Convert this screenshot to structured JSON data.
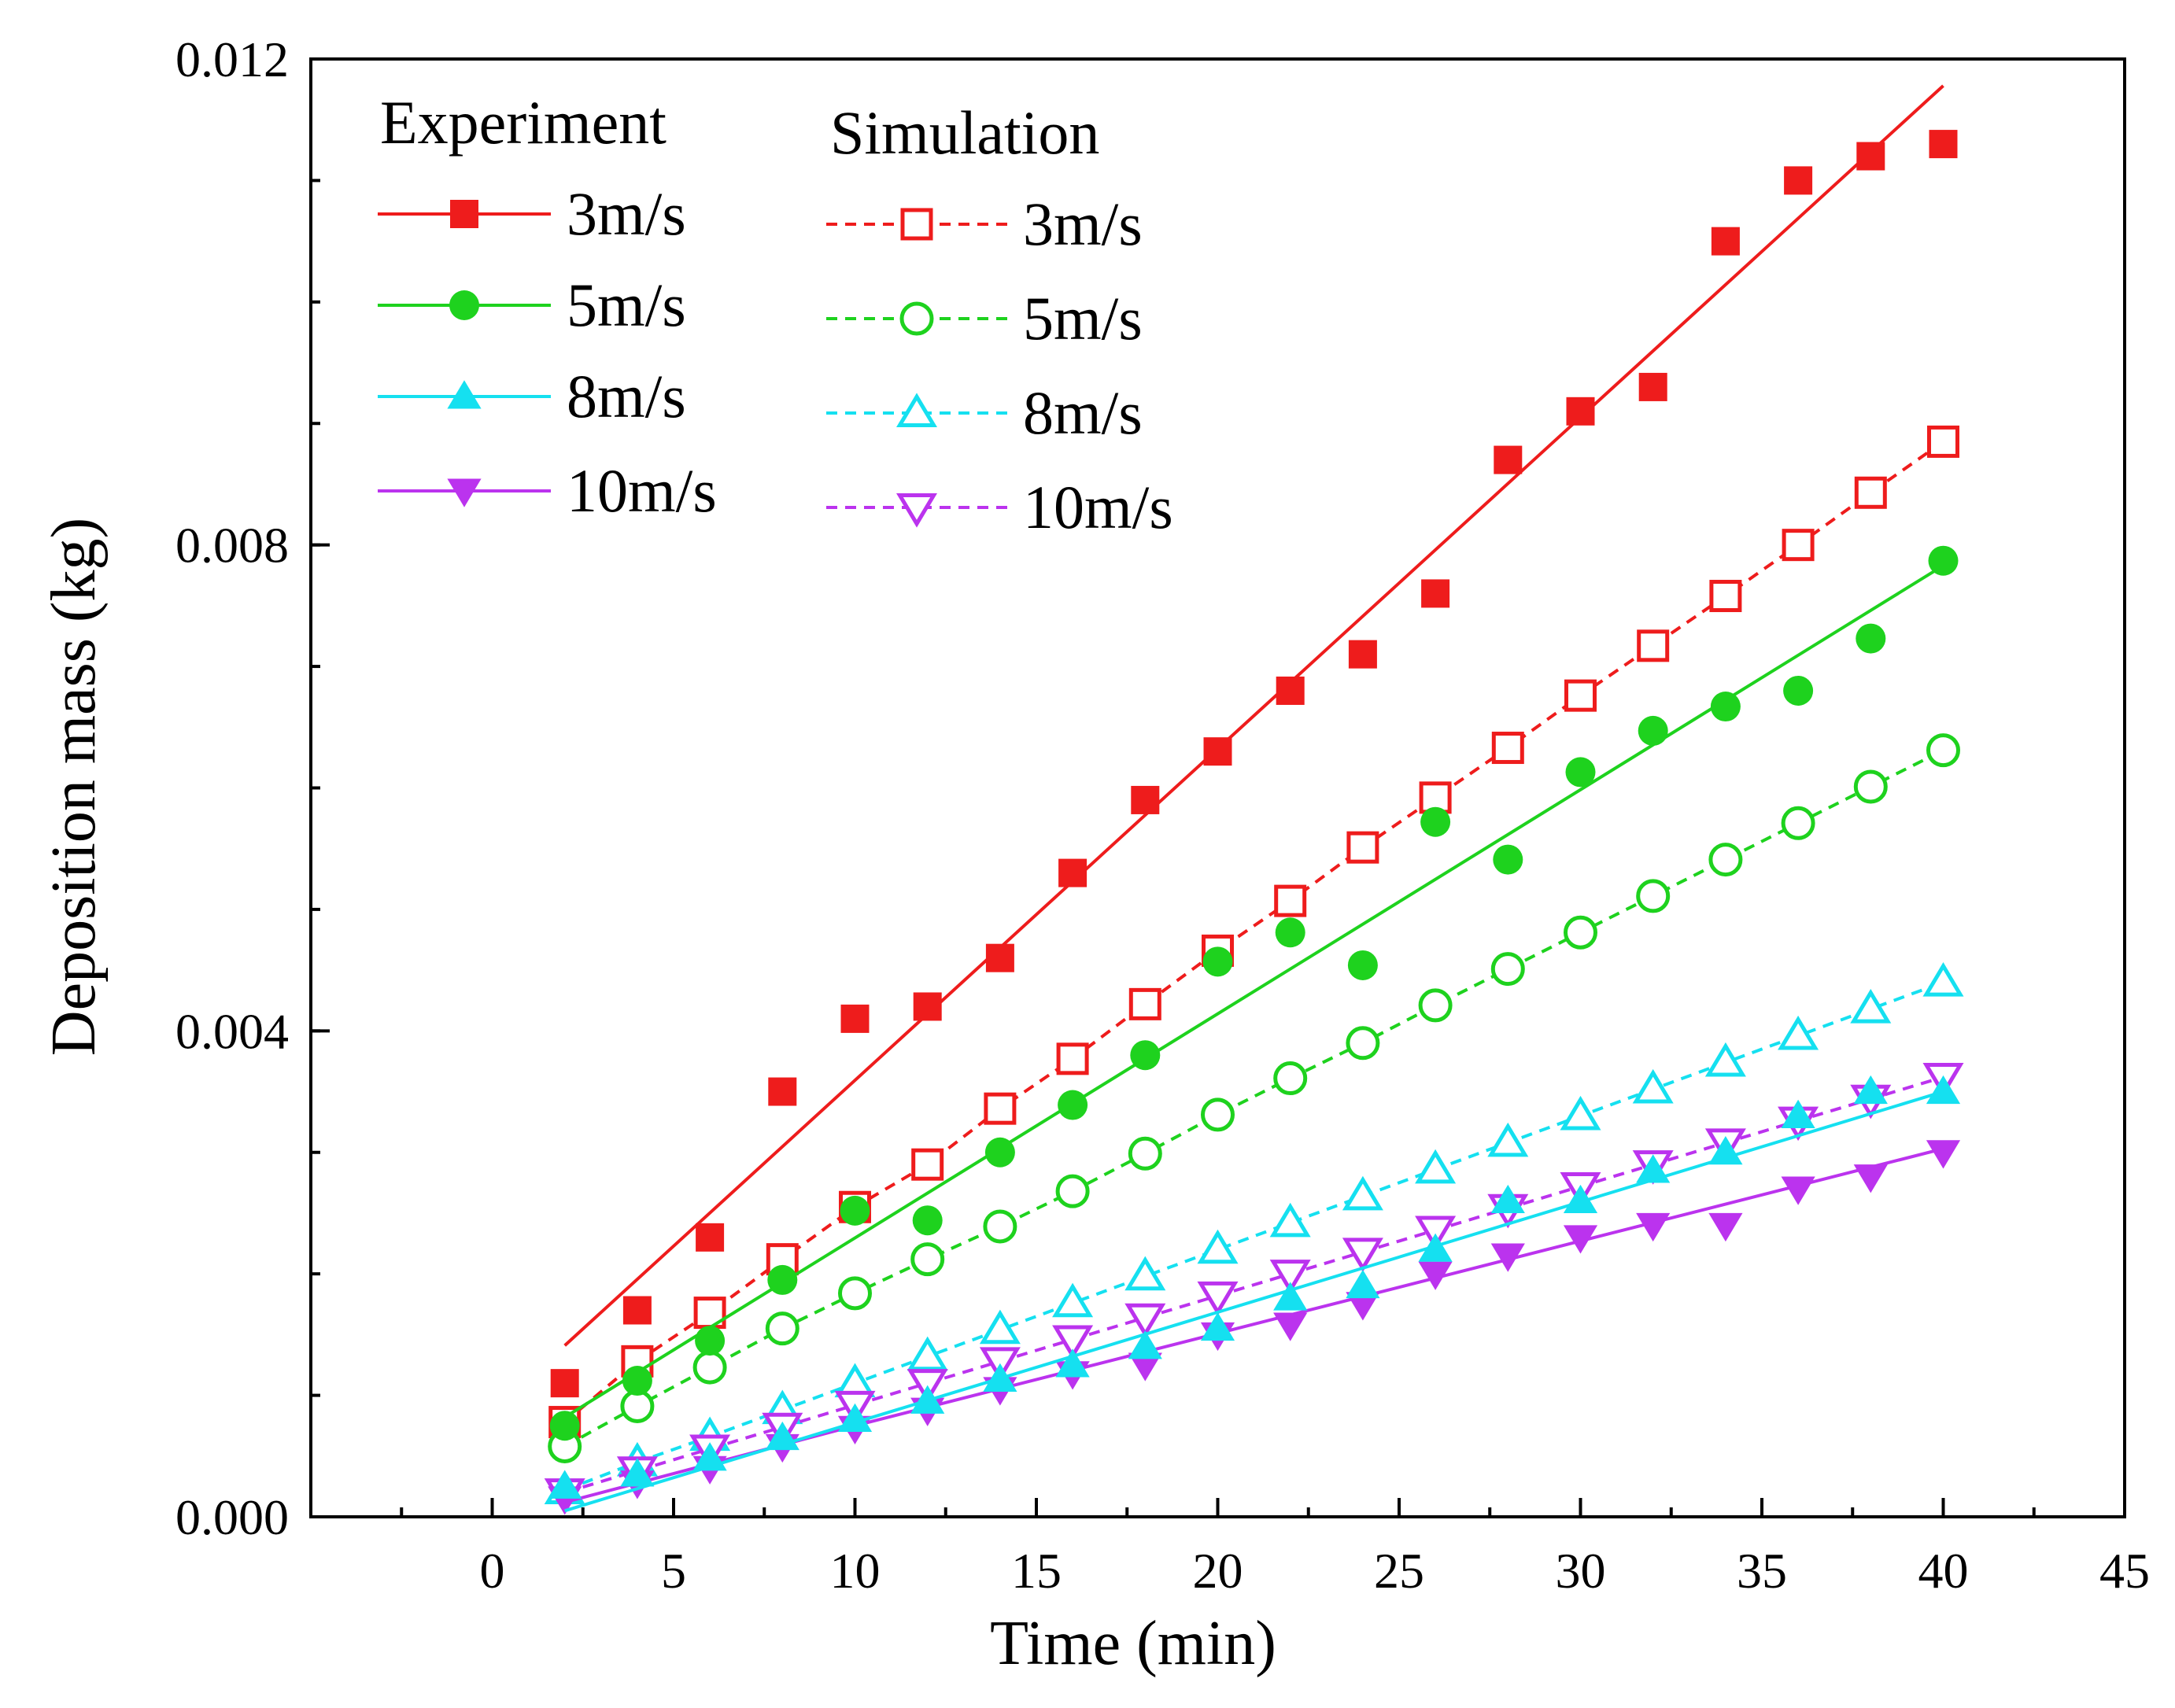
{
  "chart_data": {
    "type": "line",
    "title": "",
    "xlabel": "Time (min)",
    "ylabel": "Deposition mass (kg)",
    "xlim": [
      -5,
      45
    ],
    "ylim": [
      0,
      0.012
    ],
    "x_ticks": [
      0,
      5,
      10,
      15,
      20,
      25,
      30,
      35,
      40,
      45
    ],
    "x_tick_labels": [
      "0",
      "5",
      "10",
      "15",
      "20",
      "25",
      "30",
      "35",
      "40",
      "45"
    ],
    "y_ticks": [
      0,
      0.004,
      0.008,
      0.012
    ],
    "y_tick_labels": [
      "0.000",
      "0.004",
      "0.008",
      "0.012"
    ],
    "legend_titles": {
      "experiment": "Experiment",
      "simulation": "Simulation"
    },
    "x": [
      2,
      4,
      6,
      8,
      10,
      12,
      14,
      16,
      18,
      20,
      22,
      24,
      26,
      28,
      30,
      32,
      34,
      36,
      38,
      40
    ],
    "series": [
      {
        "name": "3m/s",
        "group": "experiment",
        "color": "#ee1c1c",
        "marker": "square",
        "filled": true,
        "values": [
          0.0011,
          0.0017,
          0.0023,
          0.0035,
          0.0041,
          0.0042,
          0.0046,
          0.0053,
          0.0059,
          0.0063,
          0.0068,
          0.0071,
          0.0076,
          0.0087,
          0.0091,
          0.0093,
          0.0105,
          0.011,
          0.0112,
          0.0113
        ],
        "fit": [
          [
            2,
            0.00141
          ],
          [
            40,
            0.01178
          ]
        ]
      },
      {
        "name": "5m/s",
        "group": "experiment",
        "color": "#1ed21e",
        "marker": "circle",
        "filled": true,
        "values": [
          0.00075,
          0.00112,
          0.00145,
          0.00195,
          0.00252,
          0.00244,
          0.003,
          0.00339,
          0.0038,
          0.00457,
          0.00481,
          0.00454,
          0.00572,
          0.00541,
          0.00613,
          0.00647,
          0.00667,
          0.0068,
          0.00723,
          0.00787
        ],
        "fit": [
          [
            2,
            0.00082
          ],
          [
            40,
            0.00783
          ]
        ]
      },
      {
        "name": "8m/s",
        "group": "experiment",
        "color": "#15e0f0",
        "marker": "triangle-up",
        "filled": true,
        "values": [
          0.00025,
          0.00035,
          0.00048,
          0.00065,
          0.0008,
          0.00095,
          0.00113,
          0.00125,
          0.0014,
          0.00155,
          0.0018,
          0.0019,
          0.0022,
          0.0026,
          0.0026,
          0.00285,
          0.003,
          0.0033,
          0.0035,
          0.0035
        ],
        "fit": [
          [
            2,
            5e-05
          ],
          [
            40,
            0.0035
          ]
        ]
      },
      {
        "name": "10m/s",
        "group": "experiment",
        "color": "#bb33ee",
        "marker": "triangle-down",
        "filled": true,
        "values": [
          0.00015,
          0.00028,
          0.0004,
          0.00058,
          0.00073,
          0.00088,
          0.00105,
          0.00118,
          0.00125,
          0.0015,
          0.00158,
          0.00175,
          0.002,
          0.00215,
          0.0023,
          0.0024,
          0.0024,
          0.0027,
          0.0028,
          0.003
        ],
        "fit": [
          [
            2,
            0.00012
          ],
          [
            10,
            0.00075
          ],
          [
            40,
            0.00303
          ]
        ]
      },
      {
        "name": "3m/s",
        "group": "simulation",
        "color": "#ee1c1c",
        "marker": "square",
        "filled": false,
        "values": [
          0.00078,
          0.00128,
          0.00168,
          0.00212,
          0.00255,
          0.0029,
          0.00336,
          0.00377,
          0.00422,
          0.00466,
          0.00507,
          0.00551,
          0.00592,
          0.00633,
          0.00676,
          0.00717,
          0.00758,
          0.008,
          0.00843,
          0.00885
        ],
        "fit": "connect"
      },
      {
        "name": "5m/s",
        "group": "simulation",
        "color": "#1ed21e",
        "marker": "circle",
        "filled": false,
        "values": [
          0.00058,
          0.00091,
          0.00123,
          0.00155,
          0.00184,
          0.00212,
          0.00239,
          0.00268,
          0.00299,
          0.00331,
          0.00361,
          0.0039,
          0.00421,
          0.00451,
          0.00481,
          0.00511,
          0.00541,
          0.00571,
          0.00601,
          0.00631
        ],
        "fit": "connect"
      },
      {
        "name": "8m/s",
        "group": "simulation",
        "color": "#15e0f0",
        "marker": "triangle-up",
        "filled": false,
        "values": [
          0.00022,
          0.00045,
          0.00066,
          0.00088,
          0.0011,
          0.00132,
          0.00154,
          0.00176,
          0.00198,
          0.0022,
          0.00242,
          0.00264,
          0.00286,
          0.00308,
          0.0033,
          0.00352,
          0.00374,
          0.00396,
          0.00418,
          0.0044
        ],
        "fit": "connect"
      },
      {
        "name": "10m/s",
        "group": "simulation",
        "color": "#bb33ee",
        "marker": "triangle-down",
        "filled": false,
        "values": [
          0.0002,
          0.00038,
          0.00056,
          0.00074,
          0.00092,
          0.0011,
          0.00128,
          0.00146,
          0.00164,
          0.00182,
          0.002,
          0.00218,
          0.00236,
          0.00254,
          0.00272,
          0.0029,
          0.00308,
          0.00326,
          0.00344,
          0.00362
        ],
        "fit": "connect"
      }
    ]
  }
}
